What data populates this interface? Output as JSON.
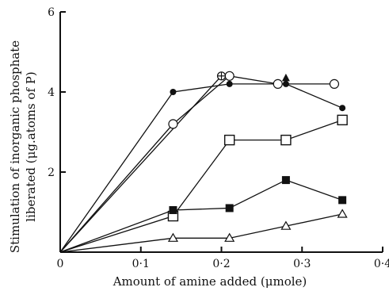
{
  "chart_data": {
    "type": "line",
    "title": "",
    "xlabel": "Amount of amine added (μmole)",
    "ylabel_line1": "Stimulation of inorganic phosphate",
    "ylabel_line2": "liberated (μg.atoms of P)",
    "xlim": [
      0,
      0.4
    ],
    "ylim": [
      0,
      6
    ],
    "x_ticks": [
      {
        "value": 0,
        "label": "0"
      },
      {
        "value": 0.1,
        "label": "0·1"
      },
      {
        "value": 0.2,
        "label": "0·2"
      },
      {
        "value": 0.3,
        "label": "0·3"
      },
      {
        "value": 0.4,
        "label": "0·4"
      }
    ],
    "y_ticks": [
      {
        "value": 0,
        "label": ""
      },
      {
        "value": 2,
        "label": "2"
      },
      {
        "value": 4,
        "label": "4"
      },
      {
        "value": 6,
        "label": "6"
      }
    ],
    "grid": false,
    "legend": "none",
    "series": [
      {
        "marker": "filled-circle",
        "x": [
          0,
          0.14,
          0.21,
          0.28,
          0.35
        ],
        "y": [
          0,
          4.0,
          4.2,
          4.2,
          3.6
        ]
      },
      {
        "marker": "open-circle",
        "x": [
          0,
          0.14,
          0.21,
          0.27,
          0.34
        ],
        "y": [
          0,
          3.2,
          4.4,
          4.2,
          4.2
        ]
      },
      {
        "marker": "circle-plus",
        "x": [
          0,
          0.2
        ],
        "y": [
          0,
          4.4
        ]
      },
      {
        "marker": "filled-triangle",
        "x": [
          0.28
        ],
        "y": [
          4.35
        ]
      },
      {
        "marker": "open-square",
        "x": [
          0,
          0.14,
          0.21,
          0.28,
          0.35
        ],
        "y": [
          0,
          0.9,
          2.8,
          2.8,
          3.3
        ]
      },
      {
        "marker": "filled-square",
        "x": [
          0,
          0.14,
          0.21,
          0.28,
          0.35
        ],
        "y": [
          0,
          1.05,
          1.1,
          1.8,
          1.3
        ]
      },
      {
        "marker": "open-triangle",
        "x": [
          0,
          0.14,
          0.21,
          0.28,
          0.35
        ],
        "y": [
          0,
          0.35,
          0.35,
          0.65,
          0.95
        ]
      }
    ]
  }
}
